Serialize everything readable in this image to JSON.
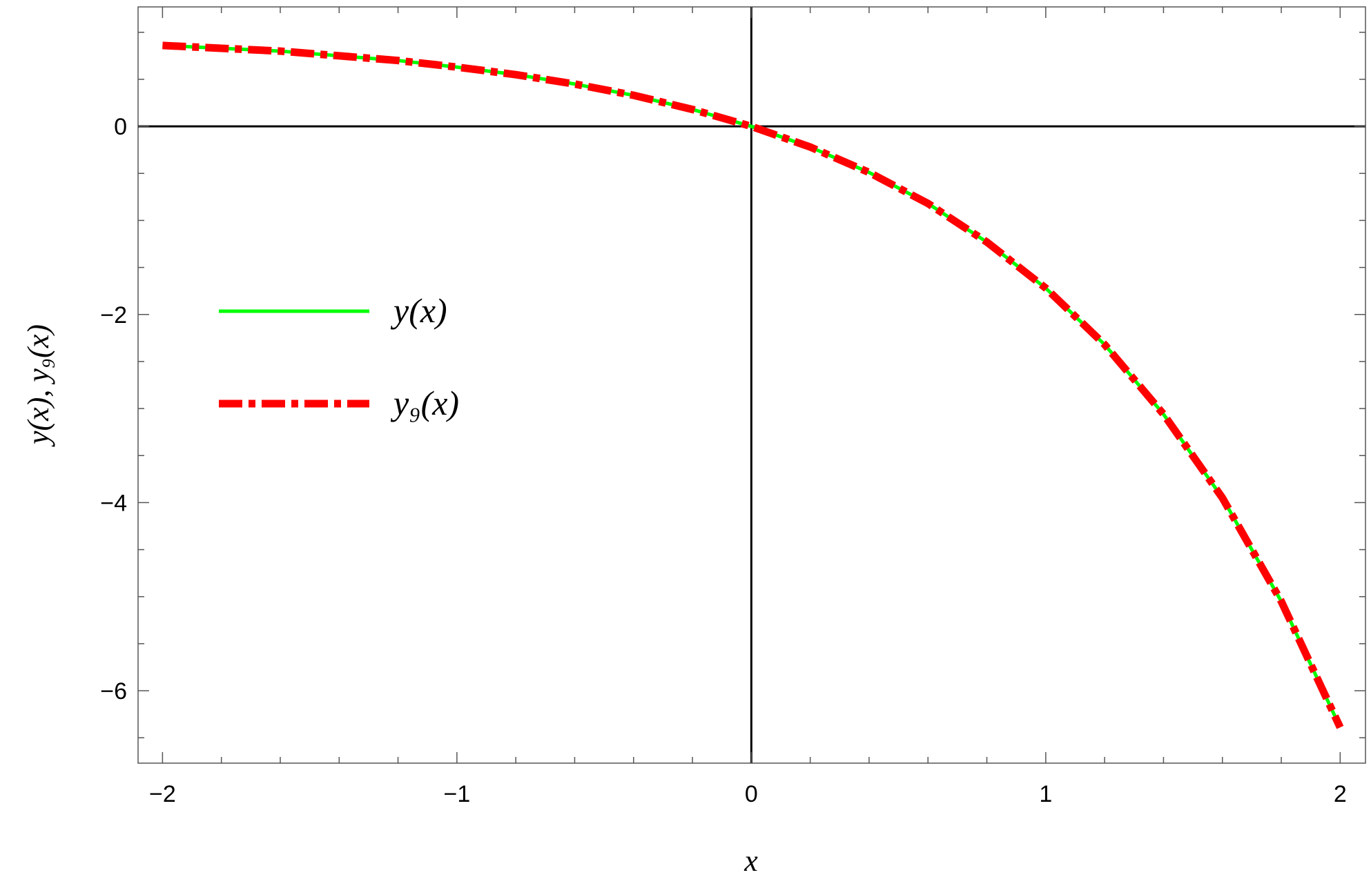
{
  "chart_data": {
    "type": "line",
    "xlabel": "x",
    "ylabel": "y(x), y₉(x)",
    "x": [
      -2,
      -1.8,
      -1.6,
      -1.4,
      -1.2,
      -1,
      -0.8,
      -0.6,
      -0.4,
      -0.2,
      0,
      0.2,
      0.4,
      0.6,
      0.8,
      1,
      1.2,
      1.4,
      1.6,
      1.8,
      2
    ],
    "series": [
      {
        "name": "y(x)",
        "color": "#00ff00",
        "style": "solid",
        "values": [
          0.86,
          0.83,
          0.8,
          0.75,
          0.7,
          0.63,
          0.55,
          0.45,
          0.33,
          0.18,
          0,
          -0.22,
          -0.49,
          -0.82,
          -1.23,
          -1.72,
          -2.32,
          -3.06,
          -3.95,
          -5.05,
          -6.39
        ]
      },
      {
        "name": "y₉(x)",
        "color": "#ff0000",
        "style": "dashdot",
        "values": [
          0.86,
          0.83,
          0.8,
          0.75,
          0.7,
          0.63,
          0.55,
          0.45,
          0.33,
          0.18,
          0,
          -0.22,
          -0.49,
          -0.82,
          -1.23,
          -1.72,
          -2.32,
          -3.06,
          -3.95,
          -5.05,
          -6.39
        ]
      }
    ],
    "xlim": [
      -2.083,
      2.086
    ],
    "ylim": [
      -6.77,
      1.27
    ],
    "xticks": [
      {
        "value": -2,
        "label": "−2"
      },
      {
        "value": -1,
        "label": "−1"
      },
      0,
      1,
      2
    ],
    "yticks": [
      {
        "value": -6,
        "label": "−6"
      },
      {
        "value": -4,
        "label": "−4"
      },
      {
        "value": -2,
        "label": "−2"
      },
      0
    ],
    "x_minor_ticks": [
      -1.8,
      -1.6,
      -1.4,
      -1.2,
      -0.8,
      -0.6,
      -0.4,
      -0.2,
      0.2,
      0.4,
      0.6,
      0.8,
      1.2,
      1.4,
      1.6,
      1.8
    ],
    "y_minor_ticks": [
      -6.5,
      -5.5,
      -5,
      -4.5,
      -3.5,
      -3,
      -2.5,
      -1.5,
      -1,
      -0.5,
      0.5,
      1
    ],
    "axes_lines": true,
    "legend": "left"
  }
}
